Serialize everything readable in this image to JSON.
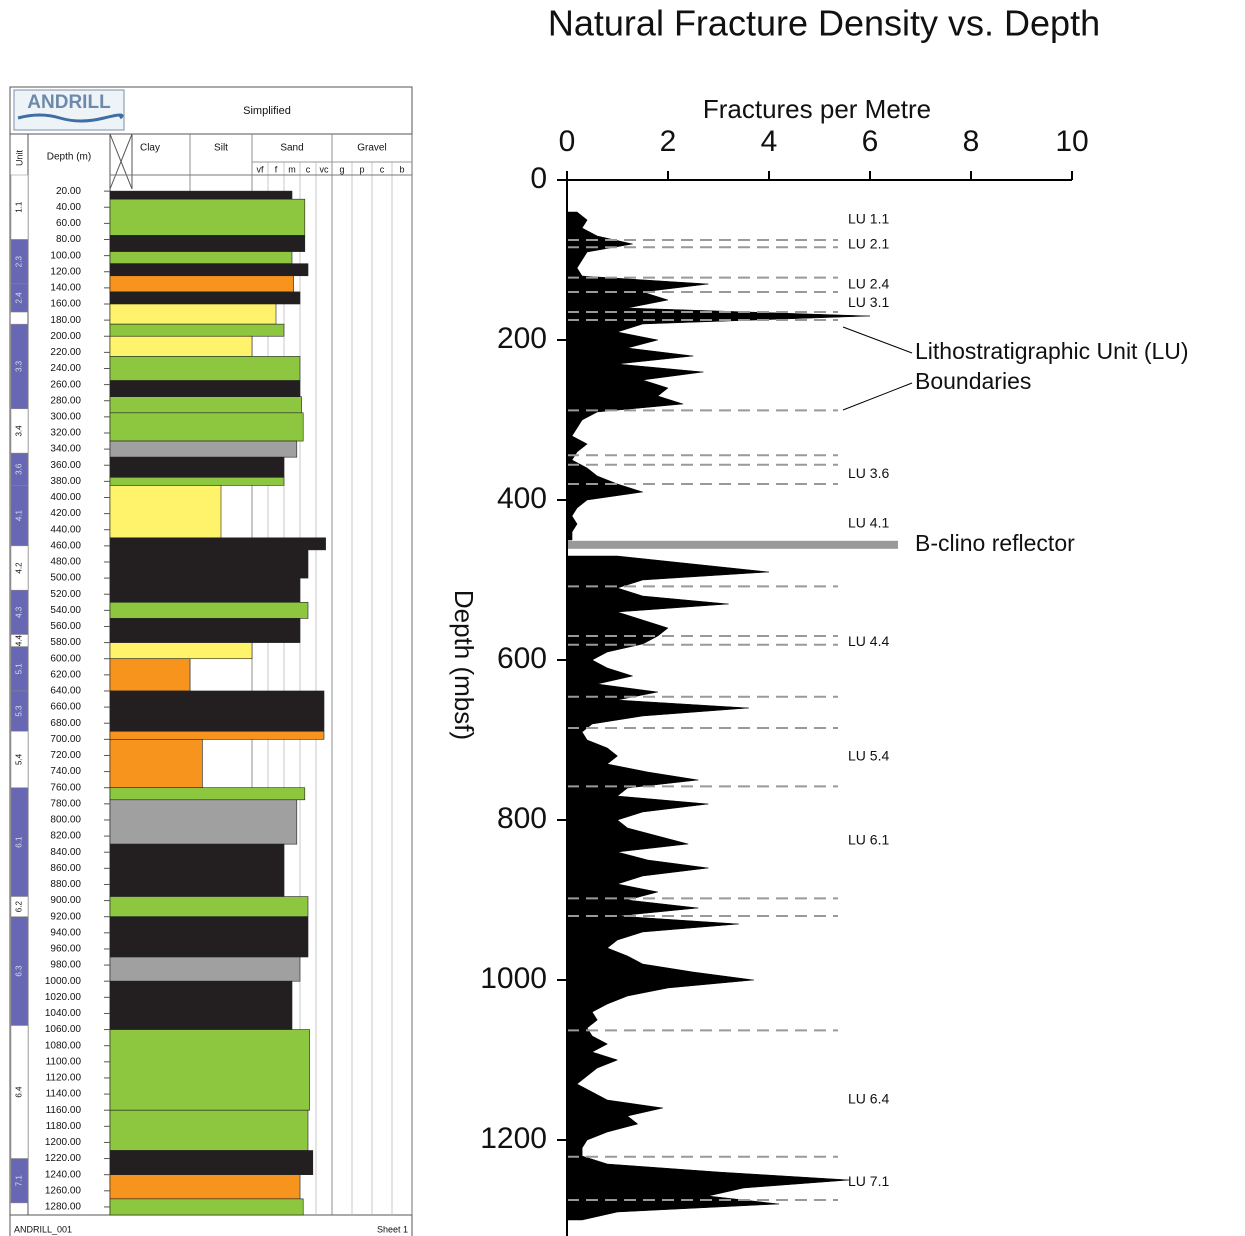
{
  "chart_data": [
    {
      "type": "lithology_log",
      "logo": "ANDRILL",
      "title": "Simplified",
      "unit_label": "Unit",
      "depth_label": "Depth (m)",
      "grain_groups": [
        {
          "name": "Clay"
        },
        {
          "name": "Silt"
        },
        {
          "name": "Sand",
          "classes": [
            "vf",
            "f",
            "m",
            "c",
            "vc"
          ]
        },
        {
          "name": "Gravel",
          "classes": [
            "g",
            "p",
            "c",
            "b"
          ]
        }
      ],
      "footer_left": "ANDRILL_001",
      "footer_right": "Sheet 1",
      "ylim": [
        0,
        1290
      ],
      "yticks": [
        {
          "value": 20,
          "label": "20.00"
        },
        {
          "value": 40,
          "label": "40.00"
        },
        {
          "value": 60,
          "label": "60.00"
        },
        {
          "value": 80,
          "label": "80.00"
        },
        {
          "value": 100,
          "label": "100.00"
        },
        {
          "value": 120,
          "label": "120.00"
        },
        {
          "value": 140,
          "label": "140.00"
        },
        {
          "value": 160,
          "label": "160.00"
        },
        {
          "value": 180,
          "label": "180.00"
        },
        {
          "value": 200,
          "label": "200.00"
        },
        {
          "value": 220,
          "label": "220.00"
        },
        {
          "value": 240,
          "label": "240.00"
        },
        {
          "value": 260,
          "label": "260.00"
        },
        {
          "value": 280,
          "label": "280.00"
        },
        {
          "value": 300,
          "label": "300.00"
        },
        {
          "value": 320,
          "label": "320.00"
        },
        {
          "value": 340,
          "label": "340.00"
        },
        {
          "value": 360,
          "label": "360.00"
        },
        {
          "value": 380,
          "label": "380.00"
        },
        {
          "value": 400,
          "label": "400.00"
        },
        {
          "value": 420,
          "label": "420.00"
        },
        {
          "value": 440,
          "label": "440.00"
        },
        {
          "value": 460,
          "label": "460.00"
        },
        {
          "value": 480,
          "label": "480.00"
        },
        {
          "value": 500,
          "label": "500.00"
        },
        {
          "value": 520,
          "label": "520.00"
        },
        {
          "value": 540,
          "label": "540.00"
        },
        {
          "value": 560,
          "label": "560.00"
        },
        {
          "value": 580,
          "label": "580.00"
        },
        {
          "value": 600,
          "label": "600.00"
        },
        {
          "value": 620,
          "label": "620.00"
        },
        {
          "value": 640,
          "label": "640.00"
        },
        {
          "value": 660,
          "label": "660.00"
        },
        {
          "value": 680,
          "label": "680.00"
        },
        {
          "value": 700,
          "label": "700.00"
        },
        {
          "value": 720,
          "label": "720.00"
        },
        {
          "value": 740,
          "label": "740.00"
        },
        {
          "value": 760,
          "label": "760.00"
        },
        {
          "value": 780,
          "label": "780.00"
        },
        {
          "value": 800,
          "label": "800.00"
        },
        {
          "value": 820,
          "label": "820.00"
        },
        {
          "value": 840,
          "label": "840.00"
        },
        {
          "value": 860,
          "label": "860.00"
        },
        {
          "value": 880,
          "label": "880.00"
        },
        {
          "value": 900,
          "label": "900.00"
        },
        {
          "value": 920,
          "label": "920.00"
        },
        {
          "value": 940,
          "label": "940.00"
        },
        {
          "value": 960,
          "label": "960.00"
        },
        {
          "value": 980,
          "label": "980.00"
        },
        {
          "value": 1000,
          "label": "1000.00"
        },
        {
          "value": 1020,
          "label": "1020.00"
        },
        {
          "value": 1040,
          "label": "1040.00"
        },
        {
          "value": 1060,
          "label": "1060.00"
        },
        {
          "value": 1080,
          "label": "1080.00"
        },
        {
          "value": 1100,
          "label": "1100.00"
        },
        {
          "value": 1120,
          "label": "1120.00"
        },
        {
          "value": 1140,
          "label": "1140.00"
        },
        {
          "value": 1160,
          "label": "1160.00"
        },
        {
          "value": 1180,
          "label": "1180.00"
        },
        {
          "value": 1200,
          "label": "1200.00"
        },
        {
          "value": 1220,
          "label": "1220.00"
        },
        {
          "value": 1240,
          "label": "1240.00"
        },
        {
          "value": 1260,
          "label": "1260.00"
        },
        {
          "value": 1280,
          "label": "1280.00"
        }
      ],
      "units": [
        {
          "name": "1.1",
          "top": 0,
          "bottom": 80,
          "shaded": false
        },
        {
          "name": "2.3",
          "top": 80,
          "bottom": 135,
          "shaded": true
        },
        {
          "name": "2.4",
          "top": 135,
          "bottom": 170,
          "shaded": true
        },
        {
          "name": "3.3",
          "top": 185,
          "bottom": 290,
          "shaded": true
        },
        {
          "name": "3.4",
          "top": 290,
          "bottom": 345,
          "shaded": false
        },
        {
          "name": "3.6",
          "top": 345,
          "bottom": 385,
          "shaded": true
        },
        {
          "name": "4.1",
          "top": 385,
          "bottom": 460,
          "shaded": true
        },
        {
          "name": "4.2",
          "top": 460,
          "bottom": 515,
          "shaded": false
        },
        {
          "name": "4.3",
          "top": 515,
          "bottom": 570,
          "shaded": true
        },
        {
          "name": "4.4",
          "top": 570,
          "bottom": 585,
          "shaded": false
        },
        {
          "name": "5.1",
          "top": 585,
          "bottom": 640,
          "shaded": true
        },
        {
          "name": "5.3",
          "top": 640,
          "bottom": 690,
          "shaded": true
        },
        {
          "name": "5.4",
          "top": 690,
          "bottom": 760,
          "shaded": false
        },
        {
          "name": "6.1",
          "top": 760,
          "bottom": 895,
          "shaded": true
        },
        {
          "name": "6.2",
          "top": 895,
          "bottom": 920,
          "shaded": false
        },
        {
          "name": "6.3",
          "top": 920,
          "bottom": 1055,
          "shaded": true
        },
        {
          "name": "6.4",
          "top": 1055,
          "bottom": 1220,
          "shaded": false
        },
        {
          "name": "7.1",
          "top": 1220,
          "bottom": 1275,
          "shaded": true
        }
      ],
      "beds": [
        {
          "top": 20,
          "bottom": 30,
          "grain": 4.5,
          "color": "#231f20"
        },
        {
          "top": 30,
          "bottom": 75,
          "grain": 5.3,
          "color": "#8dc63f"
        },
        {
          "top": 75,
          "bottom": 95,
          "grain": 5.3,
          "color": "#231f20"
        },
        {
          "top": 95,
          "bottom": 110,
          "grain": 4.5,
          "color": "#8dc63f"
        },
        {
          "top": 110,
          "bottom": 125,
          "grain": 5.5,
          "color": "#231f20"
        },
        {
          "top": 125,
          "bottom": 145,
          "grain": 4.6,
          "color": "#f7941d"
        },
        {
          "top": 145,
          "bottom": 160,
          "grain": 5.0,
          "color": "#231f20"
        },
        {
          "top": 160,
          "bottom": 185,
          "grain": 3.5,
          "color": "#fff36b"
        },
        {
          "top": 185,
          "bottom": 200,
          "grain": 4.0,
          "color": "#8dc63f"
        },
        {
          "top": 200,
          "bottom": 225,
          "grain": 2.0,
          "color": "#fff36b"
        },
        {
          "top": 225,
          "bottom": 255,
          "grain": 5.0,
          "color": "#8dc63f"
        },
        {
          "top": 255,
          "bottom": 275,
          "grain": 5.0,
          "color": "#231f20"
        },
        {
          "top": 275,
          "bottom": 295,
          "grain": 5.1,
          "color": "#8dc63f"
        },
        {
          "top": 295,
          "bottom": 330,
          "grain": 5.2,
          "color": "#8dc63f"
        },
        {
          "top": 330,
          "bottom": 350,
          "grain": 4.8,
          "color": "#a0a0a0"
        },
        {
          "top": 350,
          "bottom": 375,
          "grain": 4.0,
          "color": "#231f20"
        },
        {
          "top": 375,
          "bottom": 385,
          "grain": 4.0,
          "color": "#8dc63f"
        },
        {
          "top": 385,
          "bottom": 450,
          "grain": 1.5,
          "color": "#fff36b"
        },
        {
          "top": 450,
          "bottom": 465,
          "grain": 6.6,
          "color": "#231f20"
        },
        {
          "top": 465,
          "bottom": 500,
          "grain": 5.5,
          "color": "#231f20"
        },
        {
          "top": 500,
          "bottom": 530,
          "grain": 5.0,
          "color": "#231f20"
        },
        {
          "top": 530,
          "bottom": 550,
          "grain": 5.5,
          "color": "#8dc63f"
        },
        {
          "top": 550,
          "bottom": 580,
          "grain": 5.0,
          "color": "#231f20"
        },
        {
          "top": 580,
          "bottom": 600,
          "grain": 2.0,
          "color": "#fff36b"
        },
        {
          "top": 600,
          "bottom": 640,
          "grain": 1.0,
          "color": "#f7941d"
        },
        {
          "top": 640,
          "bottom": 690,
          "grain": 6.5,
          "color": "#231f20"
        },
        {
          "top": 690,
          "bottom": 700,
          "grain": 6.5,
          "color": "#f7941d"
        },
        {
          "top": 700,
          "bottom": 760,
          "grain": 1.2,
          "color": "#f7941d"
        },
        {
          "top": 760,
          "bottom": 775,
          "grain": 5.3,
          "color": "#8dc63f"
        },
        {
          "top": 775,
          "bottom": 830,
          "grain": 4.8,
          "color": "#a0a0a0"
        },
        {
          "top": 830,
          "bottom": 895,
          "grain": 4.0,
          "color": "#231f20"
        },
        {
          "top": 895,
          "bottom": 920,
          "grain": 5.5,
          "color": "#8dc63f"
        },
        {
          "top": 920,
          "bottom": 970,
          "grain": 5.5,
          "color": "#231f20"
        },
        {
          "top": 970,
          "bottom": 1000,
          "grain": 5.0,
          "color": "#a0a0a0"
        },
        {
          "top": 1000,
          "bottom": 1060,
          "grain": 4.5,
          "color": "#231f20"
        },
        {
          "top": 1060,
          "bottom": 1160,
          "grain": 5.6,
          "color": "#8dc63f"
        },
        {
          "top": 1160,
          "bottom": 1210,
          "grain": 5.5,
          "color": "#8dc63f"
        },
        {
          "top": 1210,
          "bottom": 1240,
          "grain": 5.8,
          "color": "#231f20"
        },
        {
          "top": 1240,
          "bottom": 1270,
          "grain": 5.0,
          "color": "#f7941d"
        },
        {
          "top": 1270,
          "bottom": 1290,
          "grain": 5.2,
          "color": "#8dc63f"
        }
      ]
    },
    {
      "type": "area",
      "title": "Natural Fracture Density vs. Depth",
      "x_label": "Fractures per Metre",
      "y_label": "Depth (mbsf)",
      "color": "#000000",
      "grid": false,
      "xlim": [
        0,
        10
      ],
      "xticks": [
        0,
        2,
        4,
        6,
        8,
        10
      ],
      "ylim": [
        0,
        1320
      ],
      "yticks": [
        0,
        200,
        400,
        600,
        800,
        1000,
        1200
      ],
      "x": [
        40,
        50,
        60,
        70,
        80,
        90,
        100,
        110,
        120,
        130,
        140,
        150,
        160,
        170,
        180,
        190,
        200,
        210,
        220,
        230,
        240,
        250,
        260,
        270,
        280,
        290,
        300,
        310,
        320,
        330,
        340,
        350,
        360,
        370,
        380,
        390,
        400,
        410,
        420,
        430,
        440,
        450,
        460,
        470,
        480,
        490,
        500,
        510,
        520,
        530,
        540,
        550,
        560,
        570,
        580,
        590,
        600,
        610,
        620,
        630,
        640,
        650,
        660,
        670,
        680,
        690,
        700,
        710,
        720,
        730,
        740,
        750,
        760,
        770,
        780,
        790,
        800,
        810,
        820,
        830,
        840,
        850,
        860,
        870,
        880,
        890,
        900,
        910,
        920,
        930,
        940,
        950,
        960,
        970,
        980,
        990,
        1000,
        1010,
        1020,
        1030,
        1040,
        1050,
        1060,
        1070,
        1080,
        1090,
        1100,
        1110,
        1120,
        1130,
        1140,
        1150,
        1160,
        1170,
        1180,
        1190,
        1200,
        1210,
        1220,
        1230,
        1240,
        1250,
        1260,
        1270,
        1280,
        1290,
        1300
      ],
      "values": [
        0.2,
        0.4,
        0.3,
        0.6,
        1.3,
        0.4,
        0.3,
        0.2,
        0.3,
        2.8,
        1.5,
        2.0,
        1.2,
        6.0,
        1.5,
        1.0,
        1.8,
        1.2,
        2.5,
        1.0,
        2.7,
        1.5,
        2.0,
        1.8,
        2.3,
        0.6,
        0.3,
        0.2,
        0.1,
        0.4,
        0.2,
        0.1,
        0.4,
        0.6,
        1.0,
        1.5,
        0.4,
        0.2,
        0.1,
        0.2,
        0.1,
        0.1,
        null,
        1.0,
        2.5,
        4.0,
        1.5,
        1.0,
        1.5,
        3.2,
        1.0,
        1.5,
        2.0,
        1.8,
        1.5,
        0.8,
        0.5,
        0.8,
        1.3,
        0.6,
        1.8,
        1.0,
        3.6,
        1.5,
        0.5,
        0.3,
        0.4,
        0.8,
        1.0,
        0.8,
        1.6,
        2.6,
        1.2,
        1.0,
        2.8,
        1.5,
        1.0,
        1.2,
        1.8,
        2.4,
        1.0,
        1.6,
        2.8,
        1.5,
        1.0,
        1.8,
        1.2,
        2.6,
        1.0,
        3.4,
        1.5,
        1.0,
        0.8,
        1.2,
        1.5,
        2.5,
        3.7,
        2.0,
        1.2,
        0.8,
        0.5,
        0.6,
        0.4,
        0.5,
        0.8,
        0.5,
        1.0,
        0.6,
        0.4,
        0.2,
        0.5,
        0.8,
        1.9,
        1.2,
        1.4,
        0.8,
        0.4,
        0.3,
        0.3,
        0.8,
        3.0,
        5.6,
        3.5,
        2.8,
        4.2,
        1.0,
        0.3
      ],
      "boundaries": [
        75,
        84,
        122,
        140,
        165,
        175,
        288,
        344,
        356,
        380,
        508,
        570,
        581,
        646,
        685,
        758,
        898,
        920,
        1063,
        1221,
        1275
      ],
      "unit_labels": [
        {
          "label": "LU 1.1",
          "depth": 50
        },
        {
          "label": "LU 2.1",
          "depth": 81
        },
        {
          "label": "LU 2.4",
          "depth": 131
        },
        {
          "label": "LU 3.1",
          "depth": 154
        },
        {
          "label": "LU 3.6",
          "depth": 368
        },
        {
          "label": "LU 4.1",
          "depth": 430
        },
        {
          "label": "LU 4.4",
          "depth": 578
        },
        {
          "label": "LU 5.4",
          "depth": 721
        },
        {
          "label": "LU 6.1",
          "depth": 826
        },
        {
          "label": "LU 6.4",
          "depth": 1150
        },
        {
          "label": "LU 7.1",
          "depth": 1253
        }
      ],
      "boundary_note": [
        "Lithostratigraphic Unit (LU)",
        "Boundaries"
      ],
      "reflector": {
        "depth": 456,
        "label": "B-clino reflector"
      }
    }
  ]
}
